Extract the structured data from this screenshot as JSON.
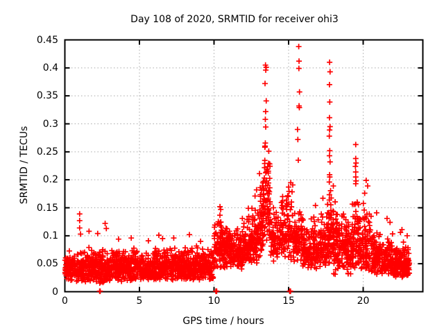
{
  "chart_data": {
    "type": "scatter",
    "title": "Day 108 of 2020, SRMTID for receiver ohi3",
    "xlabel": "GPS time / hours",
    "ylabel": "SRMTID / TECUs",
    "xlim": [
      0,
      24
    ],
    "ylim": [
      0,
      0.45
    ],
    "xticks": [
      {
        "v": 0,
        "label": "0"
      },
      {
        "v": 5,
        "label": "5"
      },
      {
        "v": 10,
        "label": "10"
      },
      {
        "v": 15,
        "label": "15"
      },
      {
        "v": 20,
        "label": "20"
      }
    ],
    "yticks": [
      {
        "v": 0,
        "label": "0"
      },
      {
        "v": 0.05,
        "label": "0.05"
      },
      {
        "v": 0.1,
        "label": "0.1"
      },
      {
        "v": 0.15,
        "label": "0.15"
      },
      {
        "v": 0.2,
        "label": "0.2"
      },
      {
        "v": 0.25,
        "label": "0.25"
      },
      {
        "v": 0.3,
        "label": "0.3"
      },
      {
        "v": 0.35,
        "label": "0.35"
      },
      {
        "v": 0.4,
        "label": "0.4"
      },
      {
        "v": 0.45,
        "label": "0.45"
      }
    ],
    "grid": true,
    "legend": "none",
    "marker": "plus",
    "marker_color": "#ff0000",
    "frame_color": "#000000",
    "grid_color": "#a8a8a8",
    "background_color": "#ffffff",
    "random_seed": 20108,
    "outlier_points": [
      [
        0.99,
        0.139
      ],
      [
        0.99,
        0.127
      ],
      [
        0.99,
        0.114
      ],
      [
        1.05,
        0.103
      ],
      [
        1.62,
        0.108
      ],
      [
        2.2,
        0.104
      ],
      [
        2.7,
        0.122
      ],
      [
        2.78,
        0.113
      ],
      [
        3.6,
        0.094
      ],
      [
        4.45,
        0.096
      ],
      [
        5.6,
        0.091
      ],
      [
        6.3,
        0.101
      ],
      [
        6.55,
        0.095
      ],
      [
        7.3,
        0.096
      ],
      [
        8.35,
        0.102
      ],
      [
        9.1,
        0.09
      ],
      [
        10.4,
        0.152
      ],
      [
        10.45,
        0.147
      ],
      [
        11.9,
        0.131
      ],
      [
        12.3,
        0.149
      ],
      [
        12.75,
        0.171
      ],
      [
        12.85,
        0.182
      ],
      [
        13.05,
        0.211
      ],
      [
        13.1,
        0.186
      ],
      [
        13.45,
        0.405
      ],
      [
        13.5,
        0.401
      ],
      [
        13.47,
        0.396
      ],
      [
        13.42,
        0.372
      ],
      [
        13.5,
        0.341
      ],
      [
        13.46,
        0.322
      ],
      [
        13.44,
        0.308
      ],
      [
        14.6,
        0.17
      ],
      [
        14.6,
        0.162
      ],
      [
        14.58,
        0.154
      ],
      [
        15.68,
        0.438
      ],
      [
        15.7,
        0.412
      ],
      [
        15.69,
        0.399
      ],
      [
        15.73,
        0.357
      ],
      [
        15.7,
        0.332
      ],
      [
        15.72,
        0.329
      ],
      [
        15.6,
        0.29
      ],
      [
        15.62,
        0.272
      ],
      [
        15.65,
        0.235
      ],
      [
        16.8,
        0.154
      ],
      [
        17.3,
        0.167
      ],
      [
        17.75,
        0.41
      ],
      [
        17.78,
        0.393
      ],
      [
        17.74,
        0.37
      ],
      [
        17.76,
        0.339
      ],
      [
        17.74,
        0.311
      ],
      [
        17.78,
        0.295
      ],
      [
        17.75,
        0.289
      ],
      [
        17.73,
        0.278
      ],
      [
        17.76,
        0.252
      ],
      [
        17.74,
        0.243
      ],
      [
        17.78,
        0.232
      ],
      [
        17.75,
        0.209
      ],
      [
        17.76,
        0.205
      ],
      [
        17.73,
        0.196
      ],
      [
        19.5,
        0.263
      ],
      [
        19.5,
        0.238
      ],
      [
        19.52,
        0.23
      ],
      [
        19.48,
        0.224
      ],
      [
        19.5,
        0.214
      ],
      [
        19.5,
        0.205
      ],
      [
        19.52,
        0.198
      ],
      [
        19.5,
        0.193
      ],
      [
        20.2,
        0.199
      ],
      [
        20.3,
        0.189
      ],
      [
        20.1,
        0.176
      ],
      [
        20.9,
        0.141
      ],
      [
        21.6,
        0.131
      ],
      [
        21.8,
        0.124
      ],
      [
        22.5,
        0.106
      ],
      [
        22.6,
        0.111
      ],
      [
        22.95,
        0.1
      ]
    ],
    "axis_touch_points": [
      [
        2.33,
        0.001
      ],
      [
        2.37,
        0.001
      ],
      [
        10.12,
        0.001
      ],
      [
        10.15,
        0.001
      ],
      [
        10.18,
        0.001
      ],
      [
        15.07,
        0.001
      ],
      [
        15.1,
        0.001
      ],
      [
        15.13,
        0.001
      ]
    ],
    "noise_bands_format": "[t0_hour, t1_hour, value_min, value_max, count]",
    "noise_bands": [
      [
        0,
        1,
        0.018,
        0.075,
        120
      ],
      [
        1,
        2,
        0.018,
        0.082,
        125
      ],
      [
        2,
        3,
        0.015,
        0.08,
        125
      ],
      [
        3,
        4,
        0.018,
        0.078,
        120
      ],
      [
        4,
        5,
        0.02,
        0.08,
        115
      ],
      [
        5,
        6,
        0.018,
        0.075,
        115
      ],
      [
        6,
        7,
        0.02,
        0.082,
        125
      ],
      [
        7,
        8,
        0.02,
        0.08,
        125
      ],
      [
        8,
        9,
        0.02,
        0.085,
        125
      ],
      [
        9,
        10,
        0.02,
        0.078,
        115
      ],
      [
        10,
        10.5,
        0.04,
        0.145,
        60
      ],
      [
        10.5,
        11,
        0.04,
        0.125,
        65
      ],
      [
        11,
        11.5,
        0.045,
        0.115,
        62
      ],
      [
        11.5,
        12,
        0.04,
        0.12,
        65
      ],
      [
        12,
        12.5,
        0.05,
        0.14,
        70
      ],
      [
        12.5,
        13,
        0.05,
        0.16,
        72
      ],
      [
        13,
        13.3,
        0.06,
        0.2,
        45
      ],
      [
        13.3,
        13.8,
        0.08,
        0.3,
        85
      ],
      [
        13.8,
        14.3,
        0.05,
        0.16,
        58
      ],
      [
        14.3,
        14.85,
        0.05,
        0.17,
        55
      ],
      [
        14.85,
        15.3,
        0.05,
        0.22,
        48
      ],
      [
        15.3,
        15.6,
        0.05,
        0.15,
        38
      ],
      [
        15.6,
        15.95,
        0.05,
        0.17,
        42
      ],
      [
        15.95,
        16.5,
        0.04,
        0.13,
        65
      ],
      [
        16.5,
        17,
        0.04,
        0.14,
        62
      ],
      [
        17,
        17.6,
        0.04,
        0.15,
        68
      ],
      [
        17.6,
        18,
        0.05,
        0.2,
        65
      ],
      [
        18,
        18.6,
        0.03,
        0.17,
        85
      ],
      [
        18.6,
        19.2,
        0.03,
        0.15,
        85
      ],
      [
        19.2,
        19.8,
        0.035,
        0.17,
        82
      ],
      [
        19.8,
        20.6,
        0.035,
        0.16,
        95
      ],
      [
        20.6,
        21.3,
        0.03,
        0.12,
        85
      ],
      [
        21.3,
        22,
        0.03,
        0.11,
        85
      ],
      [
        22,
        22.7,
        0.025,
        0.09,
        95
      ],
      [
        22.7,
        23.1,
        0.025,
        0.085,
        55
      ]
    ]
  }
}
